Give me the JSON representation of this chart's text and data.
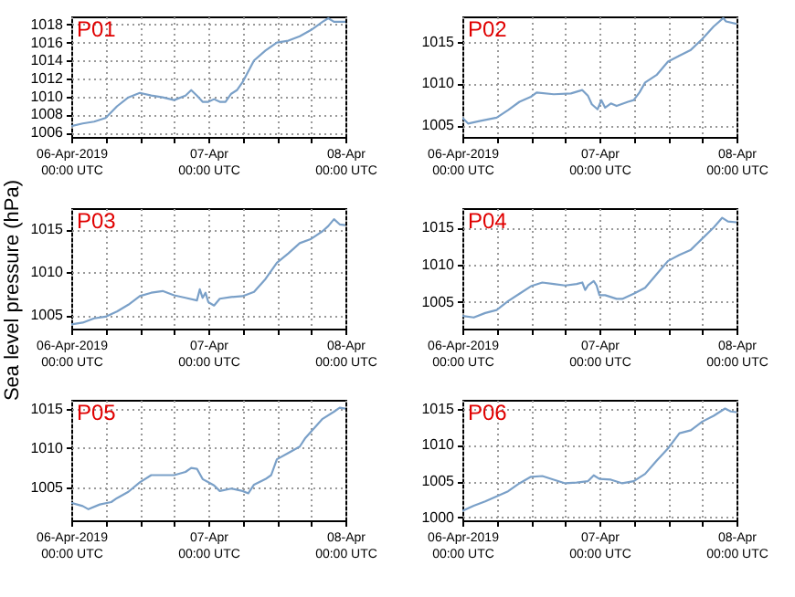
{
  "chart_data": [
    {
      "type": "line",
      "title": "P01",
      "xlim": [
        "2019-04-06T00:00",
        "2019-04-08T00:00"
      ],
      "ylim": [
        1005.5,
        1018.9
      ],
      "yticks": [
        1006,
        1008,
        1010,
        1012,
        1014,
        1016,
        1018
      ],
      "xticks": [
        {
          "value": "2019-04-06T00:00",
          "label": "06-Apr-2019\n00:00 UTC"
        },
        {
          "value": "2019-04-06T06:00",
          "label": null
        },
        {
          "value": "2019-04-06T12:00",
          "label": null
        },
        {
          "value": "2019-04-06T18:00",
          "label": null
        },
        {
          "value": "2019-04-07T00:00",
          "label": "07-Apr\n00:00 UTC"
        },
        {
          "value": "2019-04-07T06:00",
          "label": null
        },
        {
          "value": "2019-04-07T12:00",
          "label": null
        },
        {
          "value": "2019-04-07T18:00",
          "label": null
        },
        {
          "value": "2019-04-08T00:00",
          "label": "08-Apr\n00:00 UTC"
        }
      ],
      "grid": true,
      "line_style": "solid",
      "x": [
        "2019-04-06T00:00",
        "2019-04-06T02:00",
        "2019-04-06T04:00",
        "2019-04-06T06:00",
        "2019-04-06T08:00",
        "2019-04-06T10:00",
        "2019-04-06T12:00",
        "2019-04-06T14:00",
        "2019-04-06T16:00",
        "2019-04-06T18:00",
        "2019-04-06T20:00",
        "2019-04-06T21:00",
        "2019-04-06T22:00",
        "2019-04-06T23:00",
        "2019-04-07T00:00",
        "2019-04-07T01:00",
        "2019-04-07T02:00",
        "2019-04-07T03:00",
        "2019-04-07T04:00",
        "2019-04-07T05:00",
        "2019-04-07T06:00",
        "2019-04-07T08:00",
        "2019-04-07T10:00",
        "2019-04-07T12:00",
        "2019-04-07T14:00",
        "2019-04-07T16:00",
        "2019-04-07T18:00",
        "2019-04-07T20:00",
        "2019-04-07T21:00",
        "2019-04-07T22:00",
        "2019-04-08T00:00"
      ],
      "series": [
        {
          "color": "#7aa0c8",
          "values": [
            1006.7,
            1007.0,
            1007.2,
            1007.6,
            1008.9,
            1009.9,
            1010.4,
            1010.1,
            1009.9,
            1009.6,
            1010.1,
            1010.7,
            1010.1,
            1009.4,
            1009.4,
            1009.7,
            1009.4,
            1009.4,
            1010.3,
            1010.7,
            1011.6,
            1014.0,
            1015.1,
            1016.0,
            1016.2,
            1016.7,
            1017.4,
            1018.3,
            1018.7,
            1018.3,
            1018.3
          ]
        }
      ]
    },
    {
      "type": "line",
      "title": "P02",
      "xlim": [
        "2019-04-06T00:00",
        "2019-04-08T00:00"
      ],
      "ylim": [
        1003.6,
        1018
      ],
      "yticks": [
        1005,
        1010,
        1015
      ],
      "xticks": [
        {
          "value": "2019-04-06T00:00",
          "label": "06-Apr-2019\n00:00 UTC"
        },
        {
          "value": "2019-04-06T06:00",
          "label": null
        },
        {
          "value": "2019-04-06T12:00",
          "label": null
        },
        {
          "value": "2019-04-06T18:00",
          "label": null
        },
        {
          "value": "2019-04-07T00:00",
          "label": "07-Apr\n00:00 UTC"
        },
        {
          "value": "2019-04-07T06:00",
          "label": null
        },
        {
          "value": "2019-04-07T12:00",
          "label": null
        },
        {
          "value": "2019-04-07T18:00",
          "label": null
        },
        {
          "value": "2019-04-08T00:00",
          "label": "08-Apr\n00:00 UTC"
        }
      ],
      "grid": true,
      "line_style": "solid",
      "x": [
        "2019-04-06T00:00",
        "2019-04-06T01:00",
        "2019-04-06T03:00",
        "2019-04-06T06:00",
        "2019-04-06T08:00",
        "2019-04-06T10:00",
        "2019-04-06T12:00",
        "2019-04-06T13:00",
        "2019-04-06T16:00",
        "2019-04-06T19:00",
        "2019-04-06T21:00",
        "2019-04-06T22:00",
        "2019-04-06T22:40",
        "2019-04-06T23:40",
        "2019-04-07T00:20",
        "2019-04-07T01:00",
        "2019-04-07T02:00",
        "2019-04-07T03:00",
        "2019-04-07T05:00",
        "2019-04-07T06:00",
        "2019-04-07T07:00",
        "2019-04-07T08:00",
        "2019-04-07T10:00",
        "2019-04-07T12:00",
        "2019-04-07T14:00",
        "2019-04-07T16:00",
        "2019-04-07T18:00",
        "2019-04-07T20:00",
        "2019-04-07T21:40",
        "2019-04-07T22:10",
        "2019-04-08T00:00"
      ],
      "series": [
        {
          "color": "#7aa0c8",
          "values": [
            1005.9,
            1005.2,
            1005.5,
            1005.9,
            1006.8,
            1007.8,
            1008.4,
            1008.9,
            1008.7,
            1008.8,
            1009.2,
            1008.5,
            1007.5,
            1006.9,
            1008.0,
            1007.1,
            1007.6,
            1007.3,
            1007.8,
            1008.0,
            1008.9,
            1010.1,
            1011.0,
            1012.6,
            1013.3,
            1014.0,
            1015.3,
            1016.8,
            1017.8,
            1017.4,
            1017.1
          ]
        }
      ]
    },
    {
      "type": "line",
      "title": "P03",
      "ylabel": "Sea level pressure (hPa)",
      "xlim": [
        "2019-04-06T00:00",
        "2019-04-08T00:00"
      ],
      "ylim": [
        1003.4,
        1017.5
      ],
      "yticks": [
        1005,
        1010,
        1015
      ],
      "xticks": [
        {
          "value": "2019-04-06T00:00",
          "label": "06-Apr-2019\n00:00 UTC"
        },
        {
          "value": "2019-04-06T06:00",
          "label": null
        },
        {
          "value": "2019-04-06T12:00",
          "label": null
        },
        {
          "value": "2019-04-06T18:00",
          "label": null
        },
        {
          "value": "2019-04-07T00:00",
          "label": "07-Apr\n00:00 UTC"
        },
        {
          "value": "2019-04-07T06:00",
          "label": null
        },
        {
          "value": "2019-04-07T12:00",
          "label": null
        },
        {
          "value": "2019-04-07T18:00",
          "label": null
        },
        {
          "value": "2019-04-08T00:00",
          "label": "08-Apr\n00:00 UTC"
        }
      ],
      "grid": true,
      "line_style": "solid",
      "x": [
        "2019-04-06T00:00",
        "2019-04-06T02:00",
        "2019-04-06T04:00",
        "2019-04-06T06:00",
        "2019-04-06T08:00",
        "2019-04-06T10:00",
        "2019-04-06T12:00",
        "2019-04-06T14:00",
        "2019-04-06T16:00",
        "2019-04-06T18:00",
        "2019-04-06T20:00",
        "2019-04-06T22:00",
        "2019-04-06T22:30",
        "2019-04-06T23:00",
        "2019-04-06T23:30",
        "2019-04-07T00:00",
        "2019-04-07T01:00",
        "2019-04-07T02:00",
        "2019-04-07T04:00",
        "2019-04-07T06:00",
        "2019-04-07T08:00",
        "2019-04-07T10:00",
        "2019-04-07T12:00",
        "2019-04-07T14:00",
        "2019-04-07T16:00",
        "2019-04-07T18:00",
        "2019-04-07T20:00",
        "2019-04-07T21:00",
        "2019-04-07T22:00",
        "2019-04-07T23:00",
        "2019-04-08T00:00"
      ],
      "series": [
        {
          "color": "#7aa0c8",
          "values": [
            1003.9,
            1004.1,
            1004.6,
            1004.8,
            1005.4,
            1006.2,
            1007.2,
            1007.6,
            1007.8,
            1007.3,
            1007.0,
            1006.7,
            1008.0,
            1007.0,
            1007.6,
            1006.5,
            1006.1,
            1006.9,
            1007.1,
            1007.2,
            1007.7,
            1009.2,
            1011.1,
            1012.2,
            1013.4,
            1013.9,
            1014.8,
            1015.4,
            1016.2,
            1015.6,
            1015.5
          ]
        }
      ]
    },
    {
      "type": "line",
      "title": "P04",
      "xlim": [
        "2019-04-06T00:00",
        "2019-04-08T00:00"
      ],
      "ylim": [
        1001.4,
        1017.6
      ],
      "yticks": [
        1005,
        1010,
        1015
      ],
      "xticks": [
        {
          "value": "2019-04-06T00:00",
          "label": "06-Apr-2019\n00:00 UTC"
        },
        {
          "value": "2019-04-06T06:00",
          "label": null
        },
        {
          "value": "2019-04-06T12:00",
          "label": null
        },
        {
          "value": "2019-04-06T18:00",
          "label": null
        },
        {
          "value": "2019-04-07T00:00",
          "label": "07-Apr\n00:00 UTC"
        },
        {
          "value": "2019-04-07T06:00",
          "label": null
        },
        {
          "value": "2019-04-07T12:00",
          "label": null
        },
        {
          "value": "2019-04-07T18:00",
          "label": null
        },
        {
          "value": "2019-04-08T00:00",
          "label": "08-Apr\n00:00 UTC"
        }
      ],
      "grid": true,
      "line_style": "solid",
      "x": [
        "2019-04-06T00:00",
        "2019-04-06T02:00",
        "2019-04-06T04:00",
        "2019-04-06T06:00",
        "2019-04-06T08:00",
        "2019-04-06T10:00",
        "2019-04-06T12:00",
        "2019-04-06T14:00",
        "2019-04-06T16:00",
        "2019-04-06T18:00",
        "2019-04-06T20:00",
        "2019-04-06T21:00",
        "2019-04-06T21:30",
        "2019-04-06T22:00",
        "2019-04-06T23:00",
        "2019-04-06T23:30",
        "2019-04-07T00:00",
        "2019-04-07T01:00",
        "2019-04-07T03:00",
        "2019-04-07T04:00",
        "2019-04-07T06:00",
        "2019-04-07T08:00",
        "2019-04-07T10:00",
        "2019-04-07T12:00",
        "2019-04-07T14:00",
        "2019-04-07T16:00",
        "2019-04-07T18:00",
        "2019-04-07T20:00",
        "2019-04-07T21:30",
        "2019-04-07T22:30",
        "2019-04-08T00:00"
      ],
      "series": [
        {
          "color": "#7aa0c8",
          "values": [
            1003.1,
            1002.9,
            1003.5,
            1003.9,
            1005.1,
            1006.1,
            1007.1,
            1007.6,
            1007.4,
            1007.2,
            1007.4,
            1007.6,
            1006.6,
            1007.2,
            1007.8,
            1007.2,
            1005.9,
            1005.9,
            1005.4,
            1005.4,
            1006.1,
            1006.9,
            1008.7,
            1010.5,
            1011.3,
            1012.0,
            1013.5,
            1015.0,
            1016.3,
            1015.8,
            1015.7
          ]
        }
      ]
    },
    {
      "type": "line",
      "title": "P05",
      "xlim": [
        "2019-04-06T00:00",
        "2019-04-08T00:00"
      ],
      "ylim": [
        1000.9,
        1016.1
      ],
      "yticks": [
        1005,
        1010,
        1015
      ],
      "xticks": [
        {
          "value": "2019-04-06T00:00",
          "label": "06-Apr-2019\n00:00 UTC"
        },
        {
          "value": "2019-04-06T06:00",
          "label": null
        },
        {
          "value": "2019-04-06T12:00",
          "label": null
        },
        {
          "value": "2019-04-06T18:00",
          "label": null
        },
        {
          "value": "2019-04-07T00:00",
          "label": "07-Apr\n00:00 UTC"
        },
        {
          "value": "2019-04-07T06:00",
          "label": null
        },
        {
          "value": "2019-04-07T12:00",
          "label": null
        },
        {
          "value": "2019-04-07T18:00",
          "label": null
        },
        {
          "value": "2019-04-08T00:00",
          "label": "08-Apr\n00:00 UTC"
        }
      ],
      "grid": true,
      "line_style": "solid",
      "x": [
        "2019-04-06T00:00",
        "2019-04-06T02:00",
        "2019-04-06T03:00",
        "2019-04-06T05:00",
        "2019-04-06T07:00",
        "2019-04-06T08:00",
        "2019-04-06T10:00",
        "2019-04-06T12:00",
        "2019-04-06T14:00",
        "2019-04-06T16:00",
        "2019-04-06T18:00",
        "2019-04-06T20:00",
        "2019-04-06T21:00",
        "2019-04-06T22:00",
        "2019-04-06T23:00",
        "2019-04-07T00:00",
        "2019-04-07T01:00",
        "2019-04-07T02:00",
        "2019-04-07T04:00",
        "2019-04-07T06:00",
        "2019-04-07T07:00",
        "2019-04-07T08:00",
        "2019-04-07T10:00",
        "2019-04-07T11:00",
        "2019-04-07T12:00",
        "2019-04-07T14:00",
        "2019-04-07T16:00",
        "2019-04-07T17:00",
        "2019-04-07T18:00",
        "2019-04-07T20:00",
        "2019-04-07T22:00",
        "2019-04-07T23:00",
        "2019-04-08T00:00"
      ],
      "series": [
        {
          "color": "#7aa0c8",
          "values": [
            1003.1,
            1002.7,
            1002.3,
            1002.9,
            1003.2,
            1003.7,
            1004.5,
            1005.7,
            1006.6,
            1006.6,
            1006.6,
            1007.0,
            1007.5,
            1007.4,
            1006.1,
            1005.7,
            1005.3,
            1004.6,
            1004.9,
            1004.6,
            1004.3,
            1005.4,
            1006.1,
            1006.6,
            1008.6,
            1009.4,
            1010.2,
            1011.3,
            1012.1,
            1013.7,
            1014.6,
            1015.1,
            1015.0
          ]
        }
      ]
    },
    {
      "type": "line",
      "title": "P06",
      "xlim": [
        "2019-04-06T00:00",
        "2019-04-08T00:00"
      ],
      "ylim": [
        999.6,
        1016.2
      ],
      "yticks": [
        1000,
        1005,
        1010,
        1015
      ],
      "xticks": [
        {
          "value": "2019-04-06T00:00",
          "label": "06-Apr-2019\n00:00 UTC"
        },
        {
          "value": "2019-04-06T06:00",
          "label": null
        },
        {
          "value": "2019-04-06T12:00",
          "label": null
        },
        {
          "value": "2019-04-06T18:00",
          "label": null
        },
        {
          "value": "2019-04-07T00:00",
          "label": "07-Apr\n00:00 UTC"
        },
        {
          "value": "2019-04-07T06:00",
          "label": null
        },
        {
          "value": "2019-04-07T12:00",
          "label": null
        },
        {
          "value": "2019-04-07T18:00",
          "label": null
        },
        {
          "value": "2019-04-08T00:00",
          "label": "08-Apr\n00:00 UTC"
        }
      ],
      "grid": true,
      "line_style": "solid",
      "x": [
        "2019-04-06T00:00",
        "2019-04-06T02:00",
        "2019-04-06T04:00",
        "2019-04-06T06:00",
        "2019-04-06T08:00",
        "2019-04-06T10:00",
        "2019-04-06T12:00",
        "2019-04-06T14:00",
        "2019-04-06T16:00",
        "2019-04-06T18:00",
        "2019-04-06T20:00",
        "2019-04-06T22:00",
        "2019-04-06T23:00",
        "2019-04-07T00:00",
        "2019-04-07T02:00",
        "2019-04-07T04:00",
        "2019-04-07T06:00",
        "2019-04-07T08:00",
        "2019-04-07T10:00",
        "2019-04-07T12:00",
        "2019-04-07T14:00",
        "2019-04-07T16:00",
        "2019-04-07T18:00",
        "2019-04-07T20:00",
        "2019-04-07T22:00",
        "2019-04-07T23:00",
        "2019-04-08T00:00"
      ],
      "series": [
        {
          "color": "#7aa0c8",
          "values": [
            1000.9,
            1001.6,
            1002.2,
            1002.9,
            1003.6,
            1004.7,
            1005.6,
            1005.7,
            1005.2,
            1004.7,
            1004.8,
            1005.0,
            1005.8,
            1005.3,
            1005.2,
            1004.7,
            1005.0,
            1006.0,
            1007.8,
            1009.5,
            1011.6,
            1012.0,
            1013.2,
            1014.0,
            1015.0,
            1014.6,
            1014.5
          ]
        }
      ]
    }
  ]
}
